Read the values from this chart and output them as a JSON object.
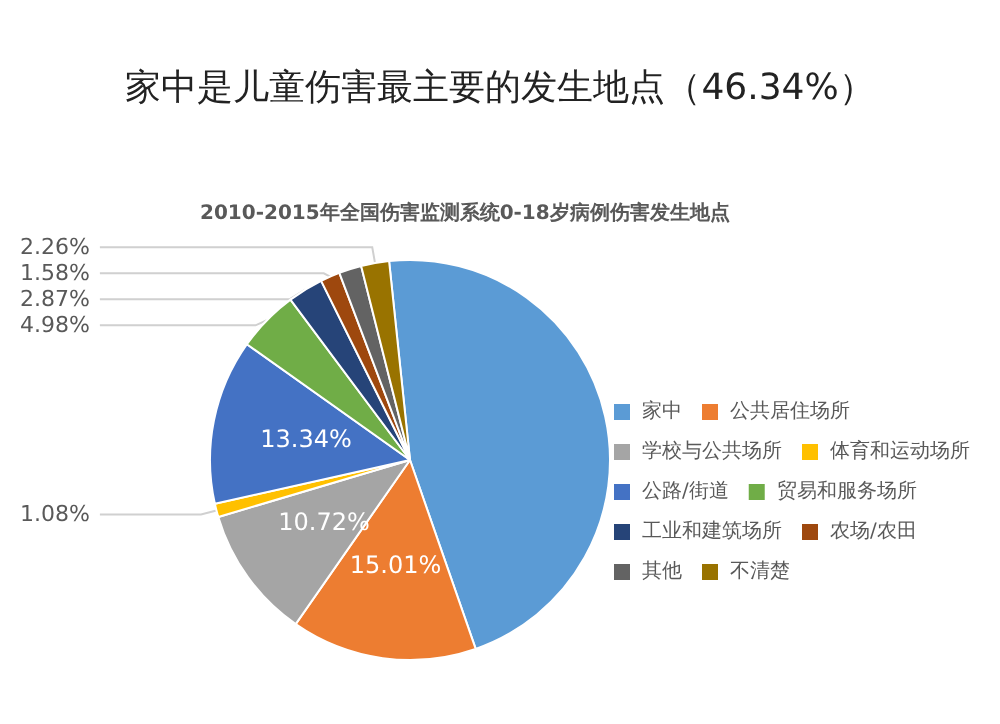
{
  "chart_data": {
    "type": "pie",
    "title": "家中是儿童伤害最主要的发生地点（46.34%）",
    "subtitle": "2010-2015年全国伤害监测系统0-18岁病例伤害发生地点",
    "categories": [
      "家中",
      "公共居住场所",
      "学校与公共场所",
      "体育和运动场所",
      "公路/街道",
      "贸易和服务场所",
      "工业和建筑场所",
      "农场/农田",
      "其他",
      "不清楚"
    ],
    "values": [
      46.34,
      15.01,
      10.72,
      1.08,
      13.34,
      4.98,
      2.87,
      1.58,
      1.82,
      2.26
    ],
    "value_labels": [
      null,
      "15.01%",
      "10.72%",
      "1.08%",
      "13.34%",
      "4.98%",
      "2.87%",
      "1.58%",
      null,
      "2.26%"
    ],
    "colors": [
      "#5b9bd5",
      "#ed7d31",
      "#a5a5a5",
      "#ffc000",
      "#4472c4",
      "#70ad47",
      "#264478",
      "#9e480e",
      "#636363",
      "#997300"
    ],
    "legend": "right"
  }
}
